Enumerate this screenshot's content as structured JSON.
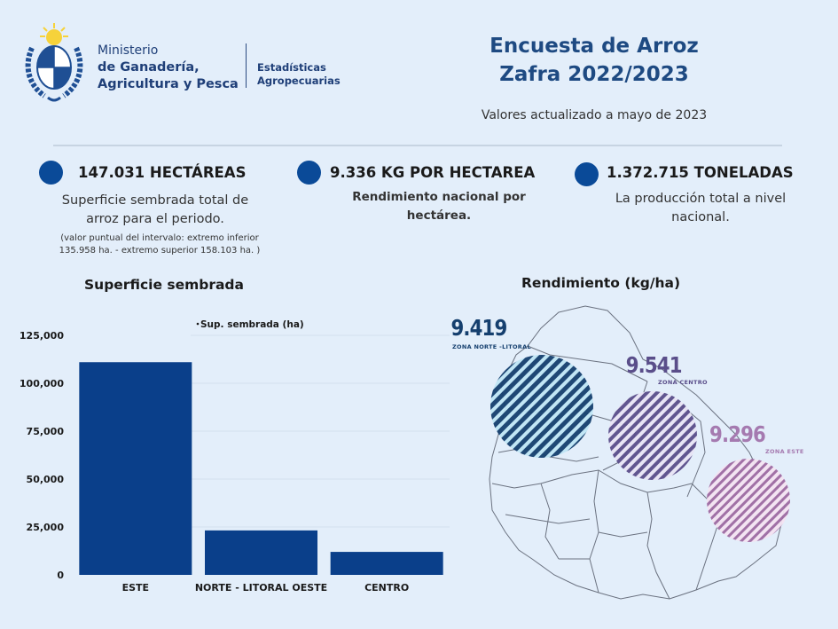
{
  "header": {
    "ministry_line1": "Ministerio",
    "ministry_line2": "de Ganadería,",
    "ministry_line3": "Agricultura y Pesca",
    "unit_line1": "Estadísticas",
    "unit_line2": "Agropecuarias",
    "logo_icon": "uruguay-coat-of-arms-icon",
    "title_line1": "Encuesta de Arroz",
    "title_line2": "Zafra 2022/2023",
    "updated": "Valores actualizado a mayo de  2023"
  },
  "kpis": [
    {
      "headline": "147.031 HECTÁREAS",
      "desc_line1": "Superficie sembrada total de",
      "desc_line2": "arroz para el periodo.",
      "note_line1": "(valor puntual del intervalo: extremo inferior",
      "note_line2": "135.958 ha. - extremo superior 158.103 ha. )"
    },
    {
      "headline": "9.336 KG POR HECTAREA",
      "desc_line1": "Rendimiento nacional por",
      "desc_line2": "hectárea."
    },
    {
      "headline": "1.372.715 TONELADAS",
      "desc_line1": "La producción total a nivel",
      "desc_line2": "nacional."
    }
  ],
  "colors": {
    "background": "#e3eefa",
    "bar": "#0a3f8a",
    "kpi_dot": "#0a4a98",
    "title": "#1e4a82",
    "zone_norte": "#153f6e",
    "zone_centro": "#5a4e8a",
    "zone_este": "#a57ab0"
  },
  "chart_data": [
    {
      "type": "bar",
      "title": "Superficie sembrada",
      "legend": "Sup. sembrada (ha)",
      "legend_position": "top-center",
      "categories": [
        "ESTE",
        "NORTE - LITORAL OESTE",
        "CENTRO"
      ],
      "values": [
        111000,
        23200,
        12000
      ],
      "yticks": [
        "0",
        "25,000",
        "50,000",
        "75,000",
        "100,000",
        "125,000"
      ],
      "ytick_values": [
        0,
        25000,
        50000,
        75000,
        100000,
        125000
      ],
      "ylim": [
        0,
        125000
      ],
      "xlabel": "",
      "ylabel": "",
      "grid": true
    },
    {
      "type": "map",
      "title": "Rendimiento (kg/ha)",
      "zones": [
        {
          "value": "9.419",
          "label": "ZONA NORTE -LITORAL"
        },
        {
          "value": "9.541",
          "label": "ZONA CENTRO"
        },
        {
          "value": "9.296",
          "label": "ZONA ESTE"
        }
      ]
    }
  ]
}
